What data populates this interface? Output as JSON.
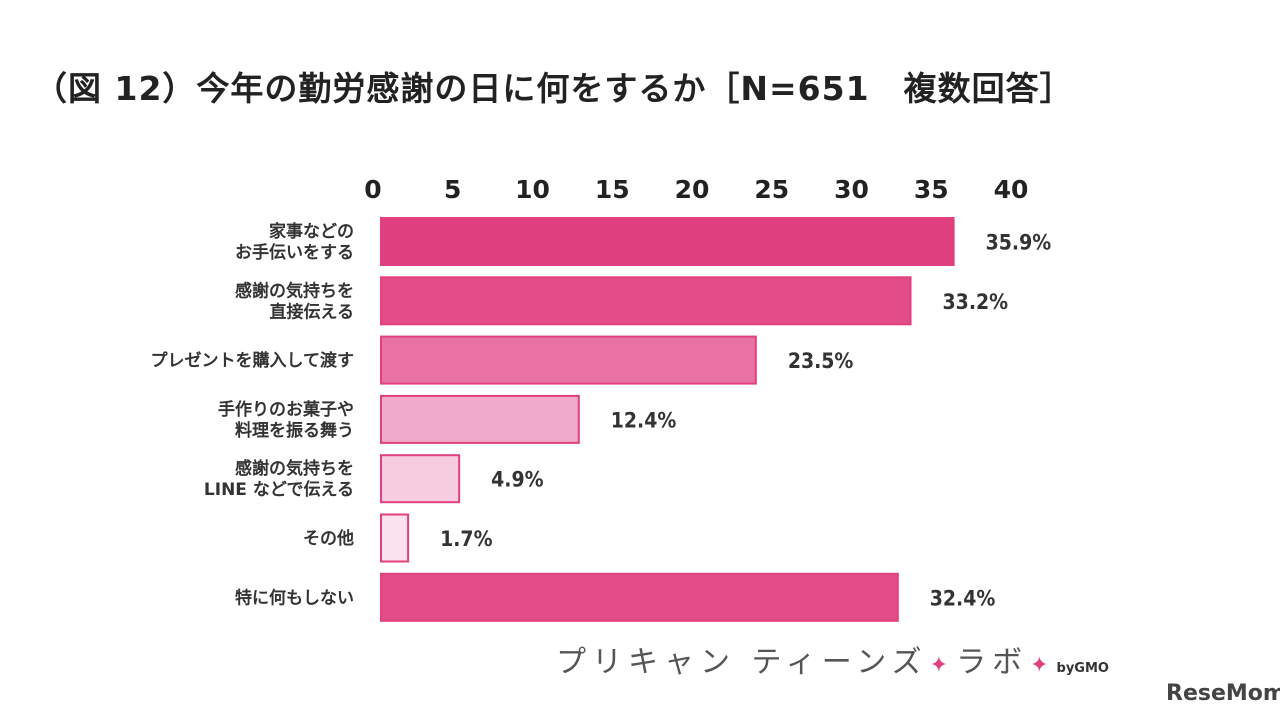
{
  "title": "（図 12）今年の勤労感謝の日に何をするか［N=651　複数回答］",
  "chart_data": {
    "type": "bar",
    "orientation": "horizontal",
    "title": "（図 12）今年の勤労感謝の日に何をするか［N=651　複数回答］",
    "xlim": [
      0,
      40
    ],
    "ticks": [
      "0",
      "5",
      "10",
      "15",
      "20",
      "25",
      "30",
      "35",
      "40"
    ],
    "tick_values": [
      0,
      5,
      10,
      15,
      20,
      25,
      30,
      35,
      40
    ],
    "grid": false,
    "categories": [
      [
        "家事などの",
        "お手伝いをする"
      ],
      [
        "感謝の気持ちを",
        "直接伝える"
      ],
      [
        "プレゼントを購入して渡す"
      ],
      [
        "手作りのお菓子や",
        "料理を振る舞う"
      ],
      [
        "感謝の気持ちを",
        "LINE などで伝える"
      ],
      [
        "その他"
      ],
      [
        "特に何もしない"
      ]
    ],
    "values": [
      35.9,
      33.2,
      23.5,
      12.4,
      4.9,
      1.7,
      32.4
    ],
    "value_labels": [
      "35.9%",
      "33.2%",
      "23.5%",
      "12.4%",
      "4.9%",
      "1.7%",
      "32.4%"
    ],
    "colors": [
      "#e0407f",
      "#e24d88",
      "#e873a3",
      "#f0abcb",
      "#f6cce0",
      "#fbe3ee",
      "#e24d88"
    ]
  },
  "brand": {
    "text": "プリキャン ティーンズ",
    "sparkle": "✦",
    "text2": "ラボ",
    "by": "byGMO"
  },
  "source": "ReseMom"
}
